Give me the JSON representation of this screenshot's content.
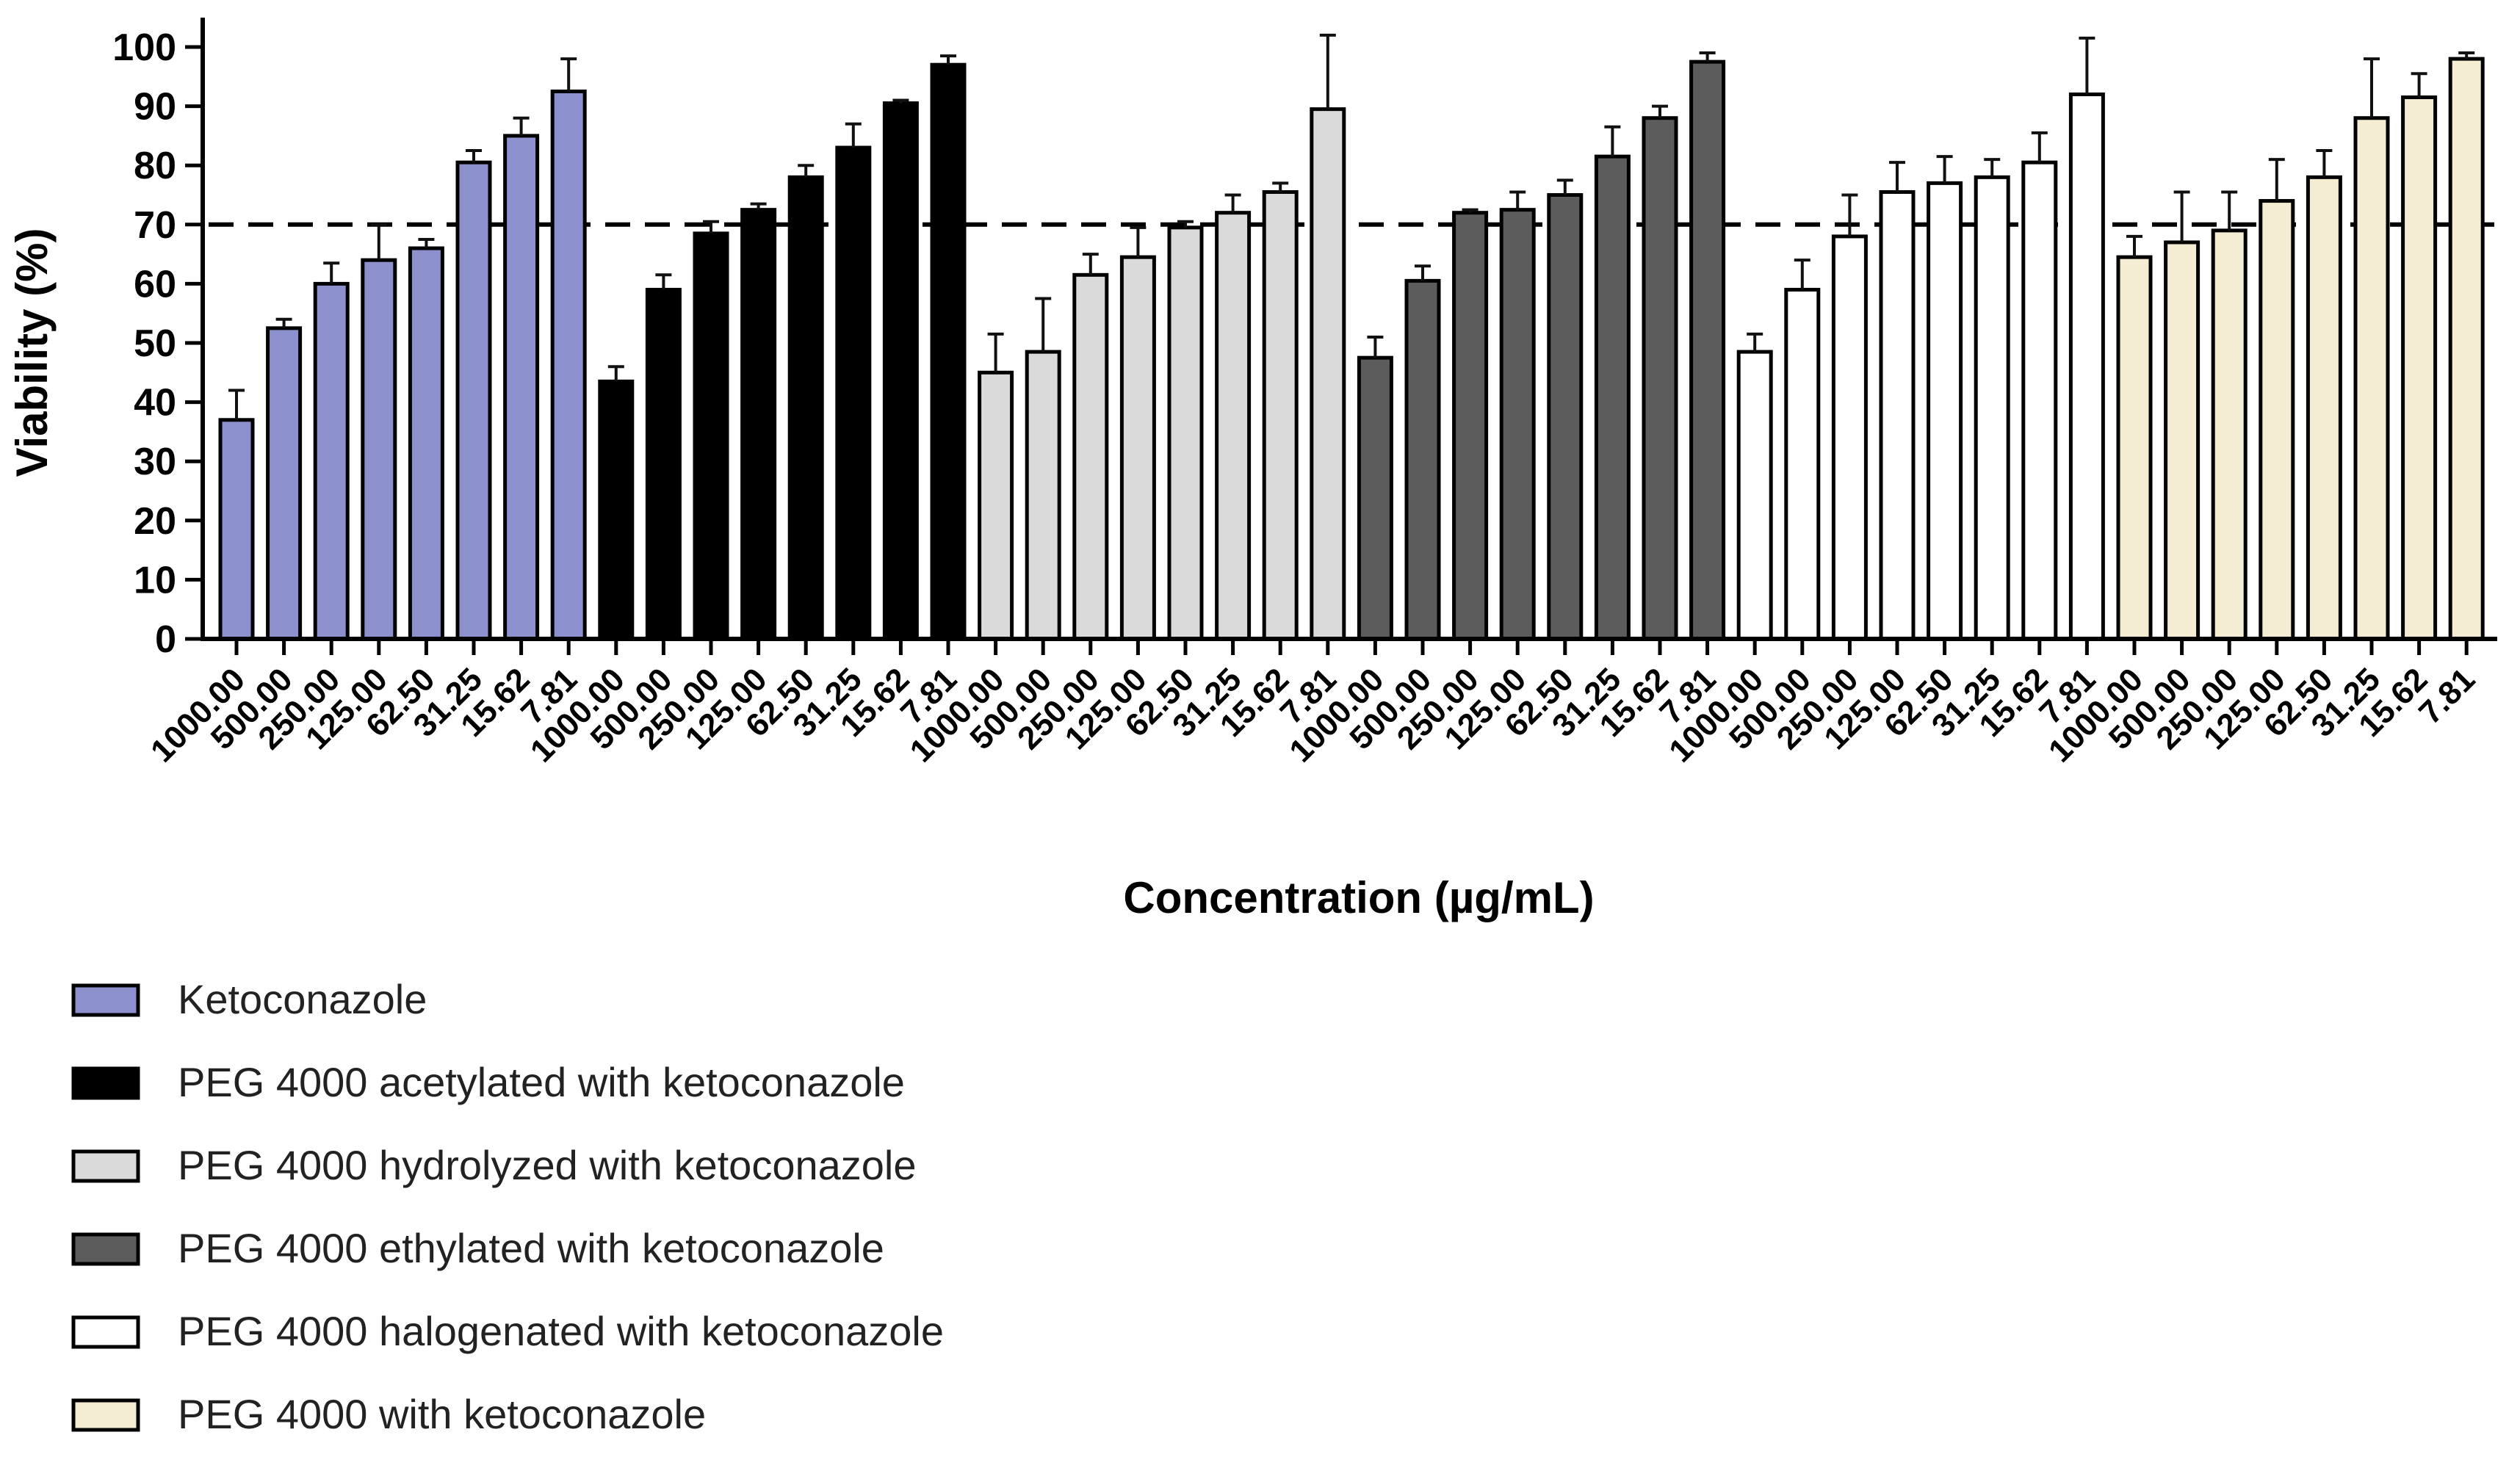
{
  "chart_data": {
    "type": "bar",
    "xlabel": "Concentration (µg/mL)",
    "ylabel": "Viability (%)",
    "ylim": [
      0,
      100
    ],
    "yticks": [
      0,
      10,
      20,
      30,
      40,
      50,
      60,
      70,
      80,
      90,
      100
    ],
    "reference_line": {
      "y": 70,
      "style": "dashed"
    },
    "categories": [
      "1000.00",
      "500.00",
      "250.00",
      "125.00",
      "62.50",
      "31.25",
      "15.62",
      "7.81"
    ],
    "series": [
      {
        "name": "Ketoconazole",
        "color": "#8C90CC",
        "values": [
          37,
          52.5,
          60,
          64,
          66,
          80.5,
          85,
          92.5
        ],
        "errors": [
          5,
          1.5,
          3.5,
          6,
          1.5,
          2,
          3,
          5.5
        ]
      },
      {
        "name": "PEG 4000 acetylated with ketoconazole",
        "color": "#000000",
        "values": [
          43.5,
          59,
          68.5,
          72.5,
          78,
          83,
          90.5,
          97
        ],
        "errors": [
          2.5,
          2.5,
          2,
          1,
          2,
          4,
          0.5,
          1.5
        ]
      },
      {
        "name": "PEG 4000 hydrolyzed with ketoconazole",
        "color": "#DADADA",
        "values": [
          45,
          48.5,
          61.5,
          64.5,
          69.5,
          72,
          75.5,
          89.5
        ],
        "errors": [
          6.5,
          9,
          3.5,
          5,
          1,
          3,
          1.5,
          12.5
        ]
      },
      {
        "name": "PEG 4000 ethylated with ketoconazole",
        "color": "#5C5C5C",
        "values": [
          47.5,
          60.5,
          72,
          72.5,
          75,
          81.5,
          88,
          97.5
        ],
        "errors": [
          3.5,
          2.5,
          0.5,
          3,
          2.5,
          5,
          2,
          1.5
        ]
      },
      {
        "name": "PEG 4000 halogenated with ketoconazole",
        "color": "#FFFFFF",
        "values": [
          48.5,
          59,
          68,
          75.5,
          77,
          78,
          80.5,
          92
        ],
        "errors": [
          3,
          5,
          7,
          5,
          4.5,
          3,
          5,
          9.5
        ]
      },
      {
        "name": "PEG 4000 with ketoconazole",
        "color": "#F4EDD4",
        "values": [
          64.5,
          67,
          69,
          74,
          78,
          88,
          91.5,
          98
        ],
        "errors": [
          3.5,
          8.5,
          6.5,
          7,
          4.5,
          10,
          4,
          1
        ]
      }
    ],
    "legend_position": "bottom-left"
  }
}
